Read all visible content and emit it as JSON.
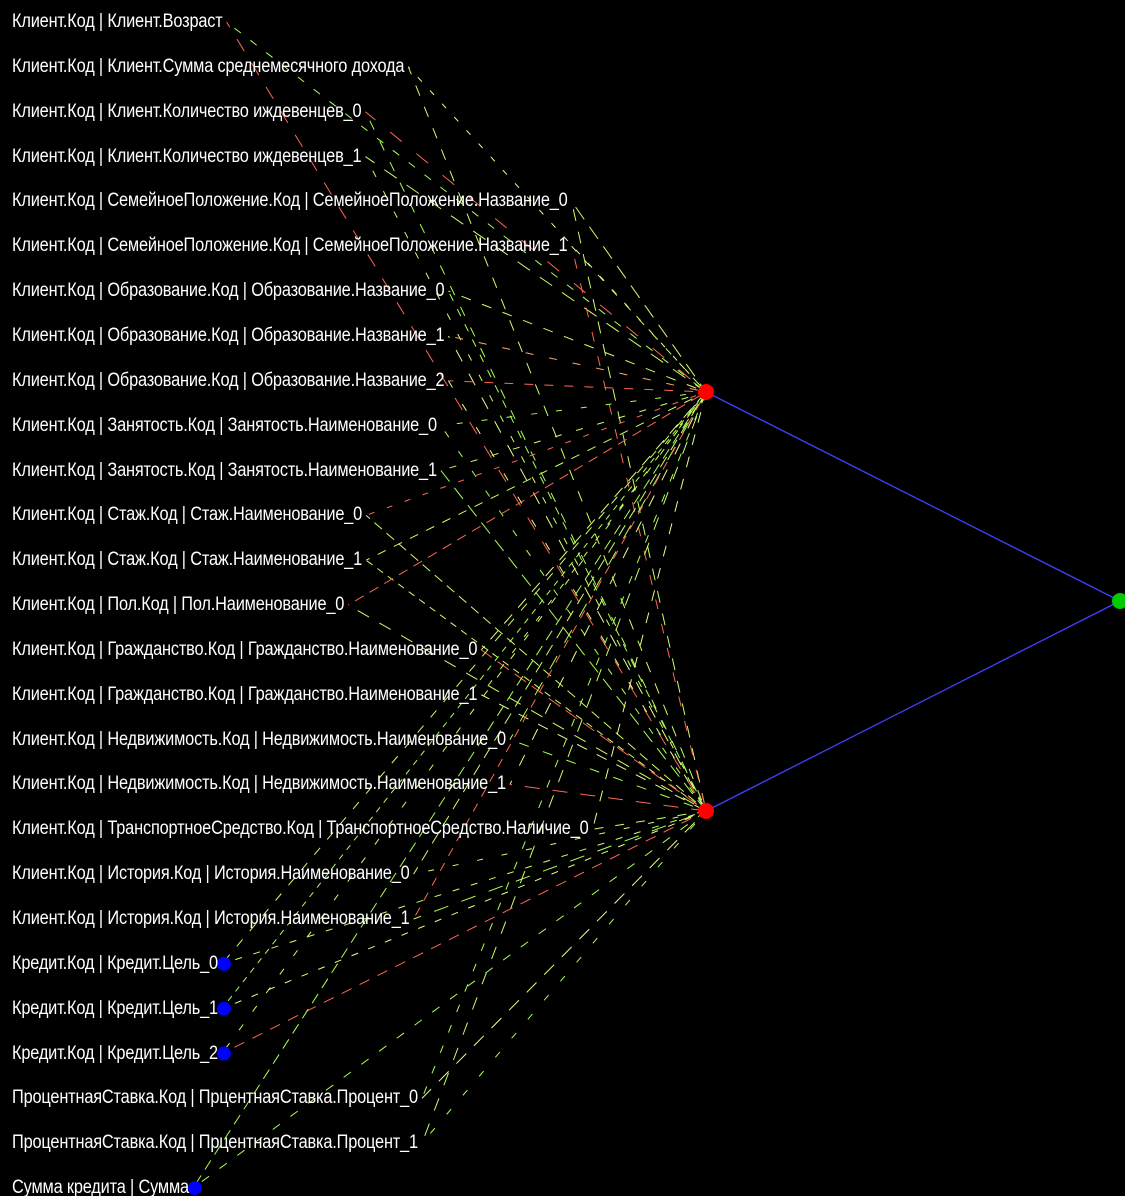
{
  "colors": {
    "background": "#000000",
    "label_text": "#ffffff",
    "input_node": "#0000ff",
    "hidden_node": "#ff0000",
    "output_node": "#00cc00",
    "hidden_output_edge": "#4040ff",
    "edge_palette": [
      "#ccff66",
      "#aaff55",
      "#e6ff88",
      "#ff6655",
      "#88ee44",
      "#ffaa66"
    ]
  },
  "network": {
    "inputs": [
      {
        "label": "Клиент.Код | Клиент.Возраст",
        "node": false
      },
      {
        "label": "Клиент.Код | Клиент.Сумма среднемесячного дохода",
        "node": false
      },
      {
        "label": "Клиент.Код | Клиент.Количество иждевенцев_0",
        "node": false
      },
      {
        "label": "Клиент.Код | Клиент.Количество иждевенцев_1",
        "node": false
      },
      {
        "label": "Клиент.Код | СемейноеПоложение.Код | СемейноеПоложение.Название_0",
        "node": false
      },
      {
        "label": "Клиент.Код | СемейноеПоложение.Код | СемейноеПоложение.Название_1",
        "node": false
      },
      {
        "label": "Клиент.Код | Образование.Код | Образование.Название_0",
        "node": false
      },
      {
        "label": "Клиент.Код | Образование.Код | Образование.Название_1",
        "node": false
      },
      {
        "label": "Клиент.Код | Образование.Код | Образование.Название_2",
        "node": false
      },
      {
        "label": "Клиент.Код | Занятость.Код | Занятость.Наименование_0",
        "node": false
      },
      {
        "label": "Клиент.Код | Занятость.Код | Занятость.Наименование_1",
        "node": false
      },
      {
        "label": "Клиент.Код | Стаж.Код | Стаж.Наименование_0",
        "node": false
      },
      {
        "label": "Клиент.Код | Стаж.Код | Стаж.Наименование_1",
        "node": false
      },
      {
        "label": "Клиент.Код | Пол.Код | Пол.Наименование_0",
        "node": false
      },
      {
        "label": "Клиент.Код | Гражданство.Код | Гражданство.Наименование_0",
        "node": false
      },
      {
        "label": "Клиент.Код | Гражданство.Код | Гражданство.Наименование_1",
        "node": false
      },
      {
        "label": "Клиент.Код | Недвижимость.Код | Недвижимость.Наименование_0",
        "node": false
      },
      {
        "label": "Клиент.Код | Недвижимость.Код | Недвижимость.Наименование_1",
        "node": false
      },
      {
        "label": "Клиент.Код | ТранспортноеСредство.Код | ТранспортноеСредство.Наличие_0",
        "node": false
      },
      {
        "label": "Клиент.Код | История.Код | История.Наименование_0",
        "node": false
      },
      {
        "label": "Клиент.Код | История.Код | История.Наименование_1",
        "node": false
      },
      {
        "label": "Кредит.Код | Кредит.Цель_0",
        "node": true
      },
      {
        "label": "Кредит.Код | Кредит.Цель_1",
        "node": true
      },
      {
        "label": "Кредит.Код | Кредит.Цель_2",
        "node": true
      },
      {
        "label": "ПроцентнаяСтавка.Код | ПрцентнаяСтавка.Процент_0",
        "node": false
      },
      {
        "label": "ПроцентнаяСтавка.Код | ПрцентнаяСтавка.Процент_1",
        "node": false
      },
      {
        "label": "Сумма кредита | Сумма",
        "node": true
      }
    ],
    "hidden_count": 2,
    "output_count": 1
  }
}
